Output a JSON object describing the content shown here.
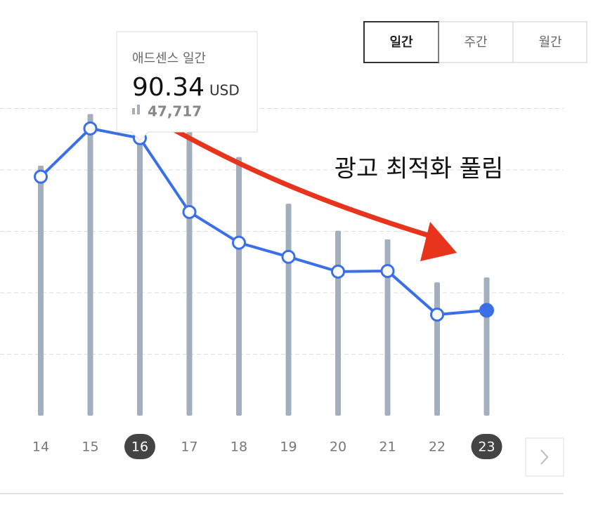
{
  "tabs": [
    "일간",
    "주간",
    "월간"
  ],
  "active_tab": 0,
  "chart_data": {
    "type": "combo",
    "categories": [
      "14",
      "15",
      "16",
      "17",
      "18",
      "19",
      "20",
      "21",
      "22",
      "23"
    ],
    "series": [
      {
        "name": "애드센스 일간",
        "type": "line",
        "color": "#3b6fe8",
        "axis": "y",
        "values": [
          77.8,
          93.5,
          90.34,
          66.3,
          56.3,
          51.7,
          46.9,
          47.1,
          32.9,
          34.3
        ]
      },
      {
        "type": "bar",
        "color": "#a3afbd",
        "axis": "y2",
        "values": [
          40700,
          49100,
          47717,
          46600,
          42100,
          34500,
          30100,
          28700,
          21700,
          22500
        ],
        "value_labels": [
          null,
          null,
          "47,717",
          null,
          null,
          null,
          null,
          null,
          null,
          null
        ]
      }
    ],
    "ylim": [
      0,
      120
    ],
    "yticks": [
      20,
      40,
      60,
      80,
      100
    ],
    "y2lim": [
      0,
      60000
    ],
    "grid": true,
    "highlight_index": [
      2,
      9
    ],
    "tooltip": {
      "index": 2,
      "unit": "USD"
    },
    "annotation": "광고 최적화 풀림"
  }
}
